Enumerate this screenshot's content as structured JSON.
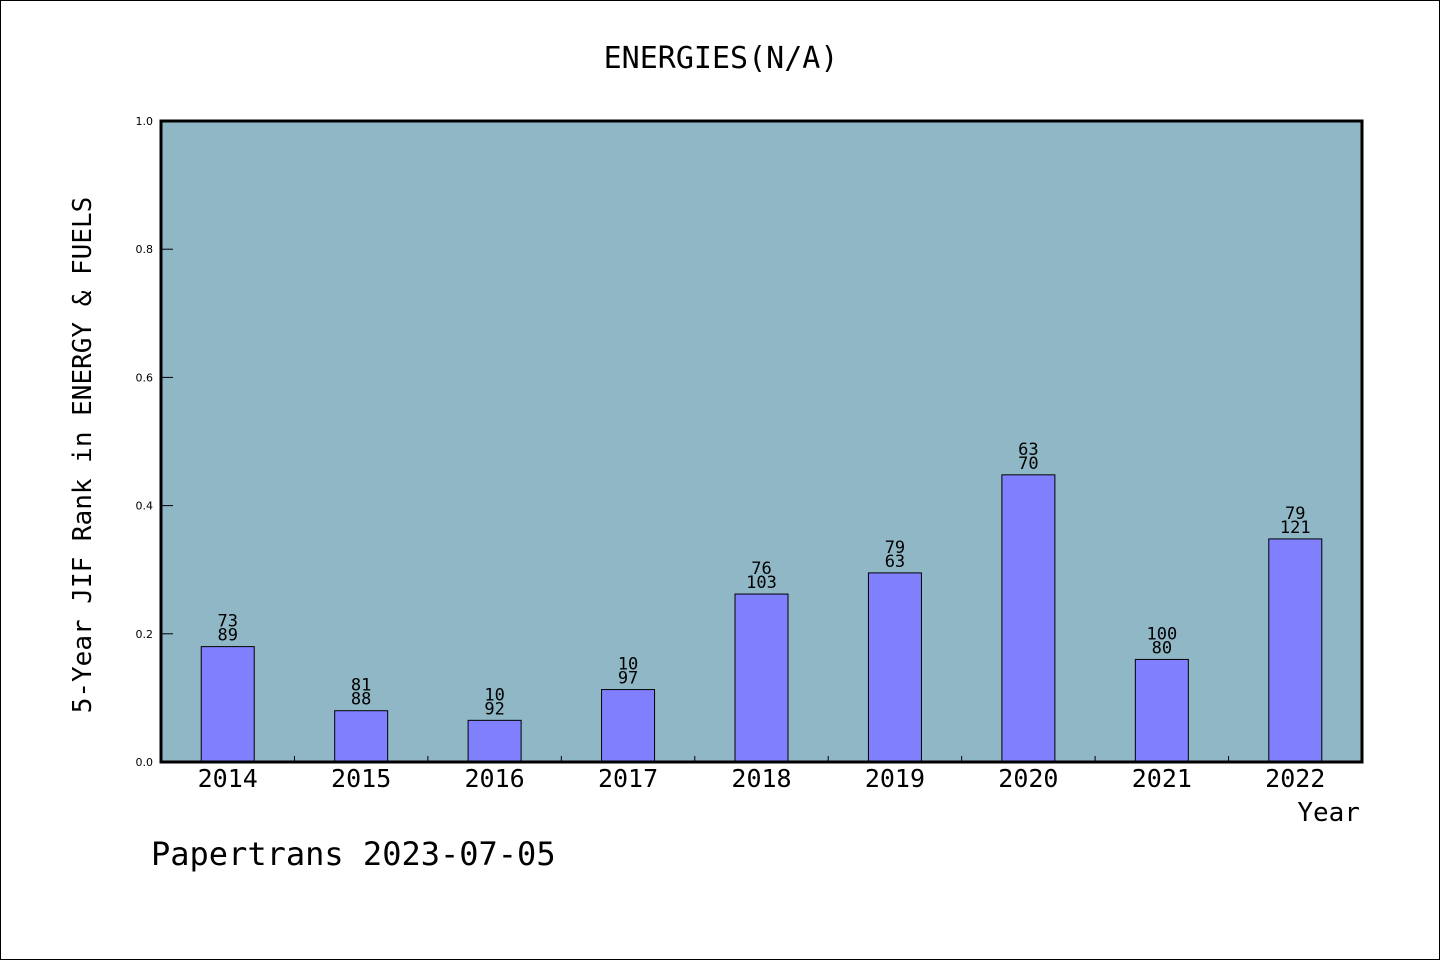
{
  "chart_data": {
    "type": "bar",
    "title": "ENERGIES(N/A)",
    "xlabel": "Year",
    "ylabel": "5-Year JIF Rank in ENERGY & FUELS",
    "categories": [
      "2014",
      "2015",
      "2016",
      "2017",
      "2018",
      "2019",
      "2020",
      "2021",
      "2022"
    ],
    "values": [
      0.18,
      0.08,
      0.065,
      0.113,
      0.262,
      0.295,
      0.448,
      0.16,
      0.348
    ],
    "label_top": [
      "73",
      "81",
      "10",
      "10",
      "76",
      "79",
      "63",
      "100",
      "79"
    ],
    "label_bottom": [
      "89",
      "88",
      "92",
      "97",
      "103",
      "63",
      "70",
      "80",
      "121"
    ],
    "ylim": [
      0,
      1.0
    ],
    "yticks": [
      "0.0",
      "0.2",
      "0.4",
      "0.6",
      "0.8",
      "1.0"
    ],
    "grid": false,
    "colors": {
      "plot_bg": "#8fb7c5",
      "bar_fill": "#8080ff",
      "bar_stroke": "#000000"
    }
  },
  "footer": {
    "source": "Papertrans 2023-07-05"
  }
}
